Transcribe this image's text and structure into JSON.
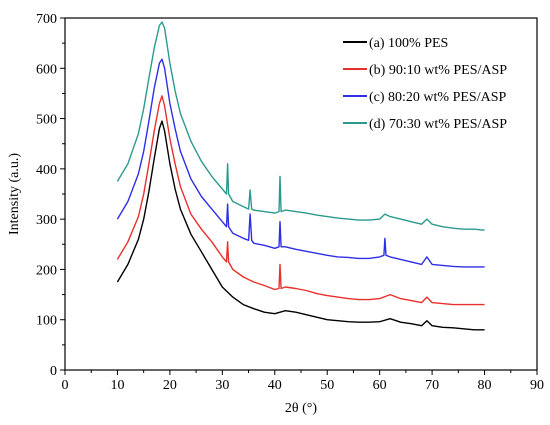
{
  "chart_data": {
    "type": "line",
    "title": "",
    "xlabel": "2θ (°)",
    "ylabel": "Intensity (a.u.)",
    "xlim": [
      0,
      90
    ],
    "ylim": [
      0,
      700
    ],
    "xticks": [
      0,
      10,
      20,
      30,
      40,
      50,
      60,
      70,
      80,
      90
    ],
    "yticks": [
      0,
      100,
      200,
      300,
      400,
      500,
      600,
      700
    ],
    "grid": false,
    "legend_position": "top-right",
    "series": [
      {
        "name": "(a) 100% PES",
        "color": "#000000",
        "x": [
          10,
          12,
          14,
          15,
          16,
          17,
          18,
          18.5,
          19,
          20,
          21,
          22,
          24,
          26,
          28,
          30,
          32,
          34,
          36,
          38,
          40,
          42,
          44,
          46,
          48,
          50,
          52,
          54,
          56,
          58,
          60,
          62,
          64,
          66,
          68,
          69,
          70,
          72,
          74,
          76,
          78,
          80
        ],
        "y": [
          175,
          210,
          260,
          300,
          355,
          420,
          480,
          495,
          475,
          410,
          360,
          320,
          270,
          235,
          200,
          165,
          145,
          130,
          122,
          115,
          112,
          118,
          115,
          110,
          105,
          100,
          98,
          96,
          95,
          95,
          96,
          102,
          95,
          92,
          88,
          98,
          88,
          85,
          84,
          82,
          80,
          80
        ]
      },
      {
        "name": "(b) 90:10 wt% PES/ASP",
        "color": "#e8302c",
        "x": [
          10,
          12,
          14,
          15,
          16,
          17,
          18,
          18.5,
          19,
          20,
          21,
          22,
          24,
          26,
          28,
          30,
          30.8,
          31,
          31.2,
          32,
          34,
          36,
          38,
          40,
          40.8,
          41,
          41.2,
          42,
          44,
          46,
          48,
          50,
          52,
          54,
          56,
          58,
          60,
          62,
          64,
          66,
          68,
          69,
          70,
          72,
          74,
          76,
          78,
          80
        ],
        "y": [
          220,
          255,
          305,
          350,
          410,
          475,
          530,
          545,
          525,
          460,
          410,
          365,
          310,
          280,
          255,
          225,
          215,
          255,
          215,
          200,
          185,
          175,
          168,
          160,
          162,
          210,
          162,
          165,
          162,
          158,
          152,
          148,
          145,
          142,
          140,
          140,
          142,
          150,
          142,
          138,
          134,
          145,
          134,
          132,
          130,
          130,
          130,
          130
        ]
      },
      {
        "name": "(c) 80:20 wt% PES/ASP",
        "color": "#2e2ee6",
        "x": [
          10,
          12,
          14,
          15,
          16,
          17,
          18,
          18.5,
          19,
          20,
          21,
          22,
          24,
          26,
          28,
          30,
          30.8,
          31,
          31.2,
          32,
          34,
          35,
          35.3,
          35.6,
          36,
          38,
          40,
          40.8,
          41,
          41.2,
          42,
          44,
          46,
          48,
          50,
          52,
          54,
          56,
          58,
          60,
          60.8,
          61,
          61.2,
          62,
          64,
          66,
          68,
          69,
          70,
          72,
          74,
          76,
          78,
          80
        ],
        "y": [
          300,
          335,
          390,
          435,
          495,
          560,
          610,
          618,
          600,
          530,
          480,
          435,
          380,
          345,
          320,
          295,
          285,
          330,
          285,
          272,
          262,
          258,
          310,
          258,
          252,
          248,
          242,
          245,
          295,
          245,
          245,
          240,
          236,
          232,
          228,
          225,
          224,
          222,
          222,
          225,
          228,
          262,
          228,
          225,
          220,
          215,
          210,
          225,
          210,
          208,
          206,
          205,
          205,
          205
        ]
      },
      {
        "name": "(d) 70:30 wt% PES/ASP",
        "color": "#2a9a8e",
        "x": [
          10,
          12,
          14,
          15,
          16,
          17,
          18,
          18.5,
          19,
          20,
          21,
          22,
          24,
          26,
          28,
          30,
          30.8,
          31,
          31.2,
          32,
          34,
          35,
          35.3,
          35.6,
          36,
          38,
          40,
          40.8,
          41,
          41.2,
          42,
          44,
          46,
          48,
          50,
          52,
          54,
          56,
          58,
          60,
          61,
          62,
          64,
          66,
          68,
          69,
          70,
          72,
          74,
          76,
          78,
          80
        ],
        "y": [
          375,
          410,
          470,
          520,
          580,
          640,
          685,
          692,
          680,
          610,
          555,
          510,
          455,
          415,
          385,
          360,
          350,
          410,
          350,
          335,
          325,
          320,
          358,
          320,
          318,
          315,
          312,
          315,
          385,
          315,
          318,
          315,
          312,
          308,
          305,
          302,
          300,
          298,
          298,
          300,
          310,
          305,
          300,
          295,
          290,
          300,
          290,
          285,
          282,
          280,
          280,
          278
        ]
      }
    ]
  }
}
